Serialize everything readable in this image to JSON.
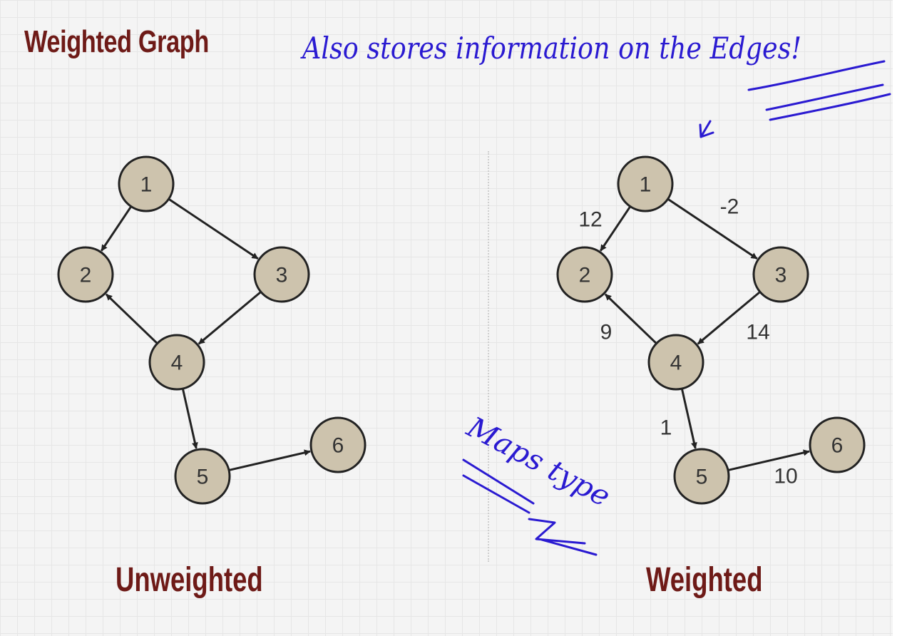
{
  "slide": {
    "title": "Weighted Graph",
    "left_caption": "Unweighted",
    "right_caption": "Weighted"
  },
  "annotations": {
    "top_note": "Also stores information on the Edges!",
    "side_note": "Maps type",
    "ink_color": "#2a1ad1"
  },
  "unweighted_graph": {
    "nodes": [
      "1",
      "2",
      "3",
      "4",
      "5",
      "6"
    ],
    "edges": [
      {
        "from": "1",
        "to": "2"
      },
      {
        "from": "1",
        "to": "3"
      },
      {
        "from": "3",
        "to": "4"
      },
      {
        "from": "4",
        "to": "2"
      },
      {
        "from": "4",
        "to": "5"
      },
      {
        "from": "5",
        "to": "6"
      }
    ]
  },
  "weighted_graph": {
    "nodes": [
      "1",
      "2",
      "3",
      "4",
      "5",
      "6"
    ],
    "edges": [
      {
        "from": "1",
        "to": "2",
        "weight": "12"
      },
      {
        "from": "1",
        "to": "3",
        "weight": "-2"
      },
      {
        "from": "3",
        "to": "4",
        "weight": "14"
      },
      {
        "from": "4",
        "to": "2",
        "weight": "9"
      },
      {
        "from": "4",
        "to": "5",
        "weight": "1"
      },
      {
        "from": "5",
        "to": "6",
        "weight": "10"
      }
    ]
  },
  "colors": {
    "heading": "#6e1a17",
    "node_fill": "#cdc3ad",
    "node_stroke": "#222222"
  }
}
